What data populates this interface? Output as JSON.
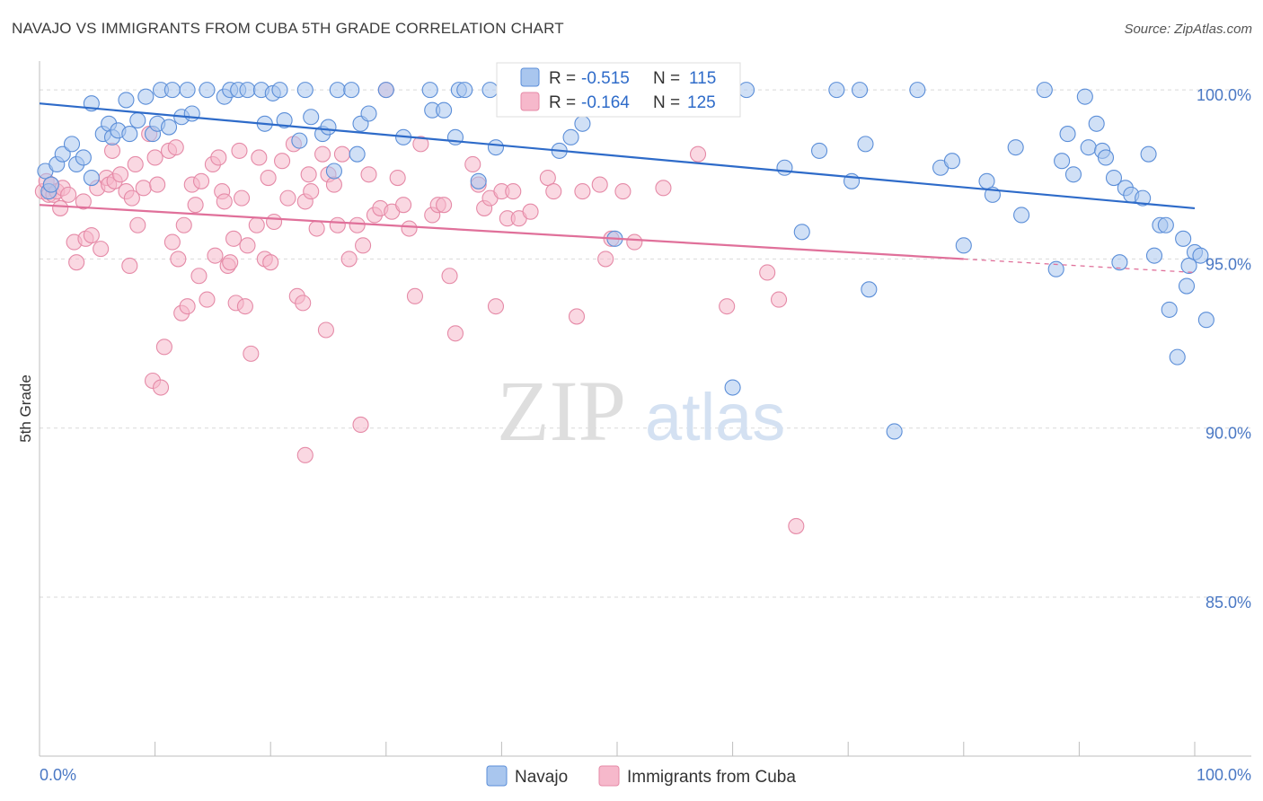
{
  "header": {
    "title": "NAVAJO VS IMMIGRANTS FROM CUBA 5TH GRADE CORRELATION CHART",
    "source": "Source: ZipAtlas.com"
  },
  "watermark": {
    "zip": "ZIP",
    "atlas": "atlas"
  },
  "legend": {
    "r_label": "R =",
    "n_label": "N =",
    "navajo_r": "-0.515",
    "navajo_n": "115",
    "cuba_r": "-0.164",
    "cuba_n": "125"
  },
  "colors": {
    "navajo_fill": "#a9c6ee",
    "navajo_stroke": "#5b8ed8",
    "navajo_line": "#2e6bc9",
    "cuba_fill": "#f6b8cb",
    "cuba_stroke": "#e58aa7",
    "cuba_line": "#e0709a",
    "tick_text": "#4a78c4",
    "grid": "#d9d9d9"
  },
  "chart_data": {
    "type": "scatter",
    "title": "NAVAJO VS IMMIGRANTS FROM CUBA 5TH GRADE CORRELATION CHART",
    "xlabel": "",
    "ylabel": "5th Grade",
    "xlim": [
      0,
      100
    ],
    "ylim": [
      80.3,
      100.8
    ],
    "x_tick_labels": [
      "0.0%",
      "100.0%"
    ],
    "y_ticks": [
      {
        "value": 100,
        "label": "100.0%"
      },
      {
        "value": 95,
        "label": "95.0%"
      },
      {
        "value": 90,
        "label": "90.0%"
      },
      {
        "value": 85,
        "label": "85.0%"
      }
    ],
    "grid": true,
    "legend_position": "bottom",
    "series": [
      {
        "name": "Navajo",
        "r": -0.515,
        "n": 115,
        "trend": {
          "x1": 0,
          "y1": 99.6,
          "x2": 100,
          "y2": 96.5
        },
        "points": [
          [
            0.5,
            97.6
          ],
          [
            0.8,
            97.0
          ],
          [
            1.0,
            97.2
          ],
          [
            1.5,
            97.8
          ],
          [
            2.0,
            98.1
          ],
          [
            2.8,
            98.4
          ],
          [
            3.2,
            97.8
          ],
          [
            3.8,
            98.0
          ],
          [
            4.5,
            97.4
          ],
          [
            4.5,
            99.6
          ],
          [
            5.5,
            98.7
          ],
          [
            6.0,
            99.0
          ],
          [
            6.3,
            98.6
          ],
          [
            6.8,
            98.8
          ],
          [
            7.5,
            99.7
          ],
          [
            7.8,
            98.7
          ],
          [
            8.5,
            99.1
          ],
          [
            9.2,
            99.8
          ],
          [
            9.8,
            98.7
          ],
          [
            10.2,
            99.0
          ],
          [
            10.5,
            100.0
          ],
          [
            11.2,
            98.9
          ],
          [
            11.5,
            100.0
          ],
          [
            12.3,
            99.2
          ],
          [
            12.8,
            100.0
          ],
          [
            13.2,
            99.3
          ],
          [
            14.5,
            100.0
          ],
          [
            16.0,
            99.8
          ],
          [
            16.5,
            100.0
          ],
          [
            17.2,
            100.0
          ],
          [
            18.0,
            100.0
          ],
          [
            19.2,
            100.0
          ],
          [
            19.5,
            99.0
          ],
          [
            20.2,
            99.9
          ],
          [
            20.8,
            100.0
          ],
          [
            21.2,
            99.1
          ],
          [
            22.5,
            98.5
          ],
          [
            23.0,
            100.0
          ],
          [
            23.5,
            99.2
          ],
          [
            24.5,
            98.7
          ],
          [
            25.0,
            98.9
          ],
          [
            25.5,
            97.6
          ],
          [
            25.8,
            100.0
          ],
          [
            27.0,
            100.0
          ],
          [
            27.5,
            98.1
          ],
          [
            27.8,
            99.0
          ],
          [
            28.5,
            99.3
          ],
          [
            30.0,
            100.0
          ],
          [
            31.5,
            98.6
          ],
          [
            33.8,
            100.0
          ],
          [
            34.0,
            99.4
          ],
          [
            35.0,
            99.4
          ],
          [
            36.0,
            98.6
          ],
          [
            36.3,
            100.0
          ],
          [
            36.8,
            100.0
          ],
          [
            38.0,
            97.3
          ],
          [
            39.0,
            100.0
          ],
          [
            39.5,
            98.3
          ],
          [
            40.5,
            100.0
          ],
          [
            42.0,
            100.0
          ],
          [
            45.0,
            98.2
          ],
          [
            46.0,
            98.6
          ],
          [
            47.0,
            99.0
          ],
          [
            49.8,
            95.6
          ],
          [
            53.0,
            100.0
          ],
          [
            54.5,
            100.0
          ],
          [
            57.0,
            100.0
          ],
          [
            58.0,
            100.0
          ],
          [
            59.5,
            100.0
          ],
          [
            60.0,
            91.2
          ],
          [
            61.2,
            100.0
          ],
          [
            64.5,
            97.7
          ],
          [
            66.0,
            95.8
          ],
          [
            67.5,
            98.2
          ],
          [
            69.0,
            100.0
          ],
          [
            70.3,
            97.3
          ],
          [
            71.0,
            100.0
          ],
          [
            71.5,
            98.4
          ],
          [
            71.8,
            94.1
          ],
          [
            74.0,
            89.9
          ],
          [
            76.0,
            100.0
          ],
          [
            78.0,
            97.7
          ],
          [
            79.0,
            97.9
          ],
          [
            80.0,
            95.4
          ],
          [
            82.0,
            97.3
          ],
          [
            82.5,
            96.9
          ],
          [
            84.5,
            98.3
          ],
          [
            85.0,
            96.3
          ],
          [
            87.0,
            100.0
          ],
          [
            88.0,
            94.7
          ],
          [
            88.5,
            97.9
          ],
          [
            89.0,
            98.7
          ],
          [
            89.5,
            97.5
          ],
          [
            90.5,
            99.8
          ],
          [
            90.8,
            98.3
          ],
          [
            91.5,
            99.0
          ],
          [
            92.0,
            98.2
          ],
          [
            92.3,
            98.0
          ],
          [
            93.0,
            97.4
          ],
          [
            93.5,
            94.9
          ],
          [
            94.0,
            97.1
          ],
          [
            94.5,
            96.9
          ],
          [
            95.5,
            96.8
          ],
          [
            96.0,
            98.1
          ],
          [
            97.0,
            96.0
          ],
          [
            97.5,
            96.0
          ],
          [
            97.8,
            93.5
          ],
          [
            98.5,
            92.1
          ],
          [
            99.0,
            95.6
          ],
          [
            99.3,
            94.2
          ],
          [
            99.5,
            94.8
          ],
          [
            100.0,
            95.2
          ],
          [
            100.5,
            95.1
          ],
          [
            101.0,
            93.2
          ],
          [
            96.5,
            95.1
          ]
        ]
      },
      {
        "name": "Immigrants from Cuba",
        "r": -0.164,
        "n": 125,
        "trend": {
          "x1": 0,
          "y1": 96.6,
          "x2": 80,
          "y2": 95.0,
          "dash_to_x": 100,
          "dash_to_y": 94.6
        },
        "points": [
          [
            0.3,
            97.0
          ],
          [
            0.6,
            97.3
          ],
          [
            0.8,
            96.9
          ],
          [
            1.0,
            97.2
          ],
          [
            1.2,
            96.9
          ],
          [
            1.5,
            97.0
          ],
          [
            1.8,
            96.5
          ],
          [
            2.0,
            97.1
          ],
          [
            2.5,
            96.9
          ],
          [
            3.0,
            95.5
          ],
          [
            3.2,
            94.9
          ],
          [
            3.8,
            96.7
          ],
          [
            4.0,
            95.6
          ],
          [
            4.5,
            95.7
          ],
          [
            5.0,
            97.1
          ],
          [
            5.3,
            95.3
          ],
          [
            5.8,
            97.4
          ],
          [
            6.0,
            97.2
          ],
          [
            6.3,
            98.2
          ],
          [
            6.5,
            97.3
          ],
          [
            7.0,
            97.5
          ],
          [
            7.5,
            97.0
          ],
          [
            7.8,
            94.8
          ],
          [
            8.0,
            96.8
          ],
          [
            8.3,
            97.8
          ],
          [
            8.5,
            96.0
          ],
          [
            9.0,
            97.1
          ],
          [
            9.5,
            98.7
          ],
          [
            9.8,
            91.4
          ],
          [
            10.0,
            98.0
          ],
          [
            10.2,
            97.2
          ],
          [
            10.5,
            91.2
          ],
          [
            10.8,
            92.4
          ],
          [
            11.2,
            98.2
          ],
          [
            11.5,
            95.5
          ],
          [
            11.8,
            98.3
          ],
          [
            12.0,
            95.0
          ],
          [
            12.3,
            93.4
          ],
          [
            12.5,
            96.0
          ],
          [
            12.8,
            93.6
          ],
          [
            13.2,
            97.2
          ],
          [
            13.5,
            96.6
          ],
          [
            13.8,
            94.5
          ],
          [
            14.0,
            97.3
          ],
          [
            14.5,
            93.8
          ],
          [
            15.0,
            97.8
          ],
          [
            15.2,
            95.1
          ],
          [
            15.5,
            98.0
          ],
          [
            15.8,
            97.0
          ],
          [
            16.0,
            96.7
          ],
          [
            16.3,
            94.8
          ],
          [
            16.5,
            94.9
          ],
          [
            16.8,
            95.6
          ],
          [
            17.0,
            93.7
          ],
          [
            17.3,
            98.2
          ],
          [
            17.5,
            96.8
          ],
          [
            17.8,
            93.6
          ],
          [
            18.0,
            95.4
          ],
          [
            18.3,
            92.2
          ],
          [
            18.8,
            96.0
          ],
          [
            19.0,
            98.0
          ],
          [
            19.5,
            95.0
          ],
          [
            19.8,
            97.4
          ],
          [
            20.0,
            94.9
          ],
          [
            20.3,
            96.1
          ],
          [
            21.0,
            97.9
          ],
          [
            21.5,
            96.8
          ],
          [
            22.0,
            98.4
          ],
          [
            22.3,
            93.9
          ],
          [
            22.8,
            93.7
          ],
          [
            23.0,
            96.7
          ],
          [
            23.3,
            97.5
          ],
          [
            23.5,
            97.0
          ],
          [
            24.0,
            95.9
          ],
          [
            24.5,
            98.1
          ],
          [
            24.8,
            92.9
          ],
          [
            25.0,
            97.5
          ],
          [
            25.5,
            97.2
          ],
          [
            25.8,
            96.0
          ],
          [
            26.2,
            98.1
          ],
          [
            26.8,
            95.0
          ],
          [
            27.5,
            96.0
          ],
          [
            27.8,
            90.1
          ],
          [
            28.0,
            95.4
          ],
          [
            28.5,
            97.5
          ],
          [
            29.0,
            96.3
          ],
          [
            29.5,
            96.5
          ],
          [
            30.0,
            100.0
          ],
          [
            30.5,
            96.4
          ],
          [
            31.0,
            97.4
          ],
          [
            31.5,
            96.6
          ],
          [
            32.0,
            95.9
          ],
          [
            32.5,
            93.9
          ],
          [
            33.0,
            98.4
          ],
          [
            34.0,
            96.3
          ],
          [
            34.5,
            96.6
          ],
          [
            35.0,
            96.6
          ],
          [
            35.5,
            94.5
          ],
          [
            36.0,
            92.8
          ],
          [
            37.5,
            97.8
          ],
          [
            38.0,
            97.2
          ],
          [
            38.5,
            96.5
          ],
          [
            39.0,
            96.8
          ],
          [
            39.5,
            93.6
          ],
          [
            40.0,
            97.0
          ],
          [
            40.5,
            96.2
          ],
          [
            41.0,
            97.0
          ],
          [
            41.5,
            96.2
          ],
          [
            42.5,
            96.4
          ],
          [
            44.0,
            97.4
          ],
          [
            44.5,
            97.0
          ],
          [
            46.5,
            93.3
          ],
          [
            47.0,
            97.0
          ],
          [
            48.5,
            97.2
          ],
          [
            49.0,
            95.0
          ],
          [
            49.5,
            95.6
          ],
          [
            50.5,
            97.0
          ],
          [
            51.5,
            95.5
          ],
          [
            54.0,
            97.1
          ],
          [
            57.0,
            98.1
          ],
          [
            59.5,
            93.6
          ],
          [
            63.0,
            94.6
          ],
          [
            64.0,
            93.8
          ],
          [
            65.5,
            87.1
          ],
          [
            23.0,
            89.2
          ]
        ]
      }
    ]
  }
}
